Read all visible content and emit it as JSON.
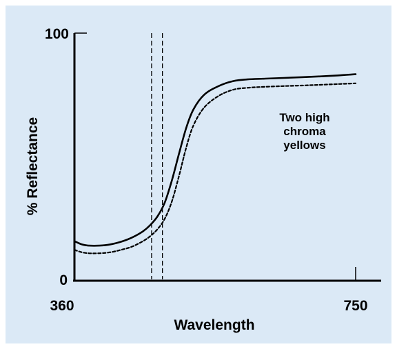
{
  "chart_data": {
    "type": "line",
    "xlabel": "Wavelength",
    "ylabel": "% Reflectance",
    "xlim": [
      360,
      750
    ],
    "ylim": [
      0,
      100
    ],
    "x_ticks": [
      360,
      750
    ],
    "y_ticks": [
      0,
      100
    ],
    "grid": false,
    "colors": {
      "axis": "#000000",
      "line": "#000000",
      "background": "#dbe9f6"
    },
    "vertical_markers": [
      467,
      482
    ],
    "annotation": [
      "Two high",
      "chroma",
      "yellows"
    ],
    "series": [
      {
        "style": "solid",
        "x": [
          360,
          370,
          380,
          395,
          410,
          425,
          440,
          455,
          465,
          475,
          485,
          495,
          505,
          515,
          525,
          540,
          560,
          580,
          600,
          625,
          650,
          675,
          700,
          725,
          750
        ],
        "y": [
          15.5,
          14.2,
          13.7,
          13.7,
          14.2,
          15.3,
          17.0,
          19.5,
          22.0,
          25.5,
          31.0,
          40.0,
          51.0,
          61.5,
          69.0,
          75.0,
          78.5,
          80.5,
          81.2,
          81.5,
          81.8,
          82.1,
          82.4,
          82.8,
          83.3
        ]
      },
      {
        "style": "dashed",
        "x": [
          360,
          370,
          380,
          395,
          410,
          425,
          440,
          455,
          465,
          475,
          485,
          495,
          505,
          515,
          525,
          540,
          560,
          580,
          600,
          625,
          650,
          675,
          700,
          725,
          750
        ],
        "y": [
          12.0,
          11.0,
          10.6,
          10.6,
          11.0,
          12.0,
          13.3,
          15.5,
          17.5,
          20.3,
          24.5,
          31.5,
          42.0,
          53.5,
          62.5,
          69.8,
          74.5,
          77.0,
          77.8,
          78.2,
          78.5,
          78.7,
          79.0,
          79.3,
          79.6
        ]
      }
    ]
  }
}
